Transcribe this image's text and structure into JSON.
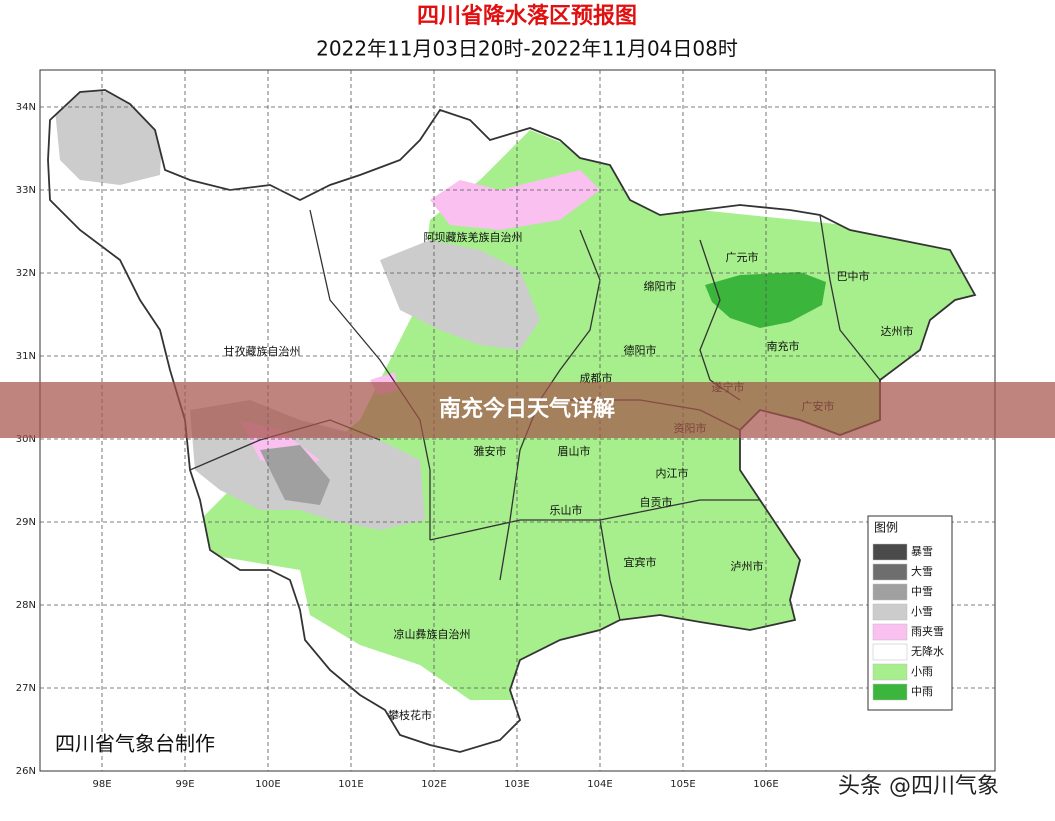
{
  "header": {
    "title": "四川省降水落区预报图",
    "subtitle": "2022年11月03日20时-2022年11月04日08时"
  },
  "map": {
    "lat_labels": [
      "34N",
      "33N",
      "32N",
      "31N",
      "30N",
      "29N",
      "28N",
      "27N",
      "26N"
    ],
    "lon_labels": [
      "98E",
      "99E",
      "100E",
      "101E",
      "102E",
      "103E",
      "104E",
      "105E",
      "106E"
    ],
    "places": [
      "阿坝藏族羌族自治州",
      "广元市",
      "巴中市",
      "绵阳市",
      "达州市",
      "甘孜藏族自治州",
      "德阳市",
      "南充市",
      "成都市",
      "遂宁市",
      "广安市",
      "资阳市",
      "雅安市",
      "眉山市",
      "内江市",
      "自贡市",
      "乐山市",
      "宜宾市",
      "泸州市",
      "凉山彝族自治州",
      "攀枝花市"
    ]
  },
  "legend": {
    "title": "图例",
    "items": [
      {
        "label": "暴雪",
        "color": "#4a4a4a"
      },
      {
        "label": "大雪",
        "color": "#6e6e6e"
      },
      {
        "label": "中雪",
        "color": "#a0a0a0"
      },
      {
        "label": "小雪",
        "color": "#cccccc"
      },
      {
        "label": "雨夹雪",
        "color": "#f9c0f0"
      },
      {
        "label": "无降水",
        "color": "#ffffff"
      },
      {
        "label": "小雨",
        "color": "#a6ef8c"
      },
      {
        "label": "中雨",
        "color": "#3cb53c"
      }
    ]
  },
  "banner": "南充今日天气详解",
  "footer": "四川省气象台制作",
  "watermark": "头条 @四川气象"
}
